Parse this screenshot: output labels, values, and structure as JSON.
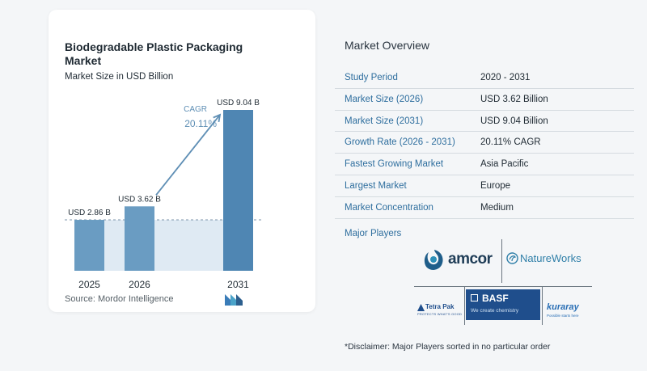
{
  "chart": {
    "title": "Biodegradable Plastic Packaging Market",
    "subtitle": "Market Size in USD Billion",
    "source": "Source:  Mordor Intelligence",
    "cagr_label": "CAGR",
    "cagr_value": "20.11%"
  },
  "chart_data": {
    "type": "bar",
    "title": "Biodegradable Plastic Packaging Market",
    "subtitle": "Market Size in USD Billion",
    "categories": [
      "2025",
      "2026",
      "2031"
    ],
    "values": [
      2.86,
      3.62,
      9.04
    ],
    "data_labels": [
      "USD 2.86 B",
      "USD 3.62 B",
      "USD 9.04 B"
    ],
    "annotation": "CAGR 20.11%",
    "ylim": [
      0,
      9.04
    ],
    "grid": false,
    "colors": {
      "bar": "#6a9cc2",
      "bar_dark": "#4f86b3",
      "arrow": "#5f8fb5",
      "shade": "#dfeaf3",
      "cagr_text": "#5f8fb5"
    }
  },
  "overview": {
    "title": "Market Overview",
    "rows": [
      {
        "key": "Study Period",
        "value": "2020 - 2031"
      },
      {
        "key": "Market Size (2026)",
        "value": "USD 3.62 Billion"
      },
      {
        "key": "Market Size (2031)",
        "value": "USD 9.04 Billion"
      },
      {
        "key": "Growth Rate (2026 - 2031)",
        "value": "20.11% CAGR"
      },
      {
        "key": "Fastest Growing Market",
        "value": "Asia Pacific"
      },
      {
        "key": "Largest Market",
        "value": "Europe"
      },
      {
        "key": "Market Concentration",
        "value": "Medium"
      }
    ],
    "players_title": "Major Players",
    "players": [
      "amcor",
      "NatureWorks",
      "BASF",
      "Tetra Pak",
      "kuraray"
    ],
    "basf_tagline": "We create chemistry",
    "tetrapak_tagline": "PROTECTS WHAT'S GOOD",
    "kuraray_tagline": "Possible starts here",
    "disclaimer": "*Disclaimer: Major Players sorted in no particular order"
  },
  "icons": {
    "source_logo": "mordor-intelligence-logo-icon",
    "amcor_logo": "amcor-logo-icon",
    "natureworks_logo": "natureworks-logo-icon",
    "basf_logo": "basf-logo-icon",
    "tetrapak_logo": "tetrapak-logo-icon",
    "kuraray_logo": "kuraray-logo-icon"
  }
}
